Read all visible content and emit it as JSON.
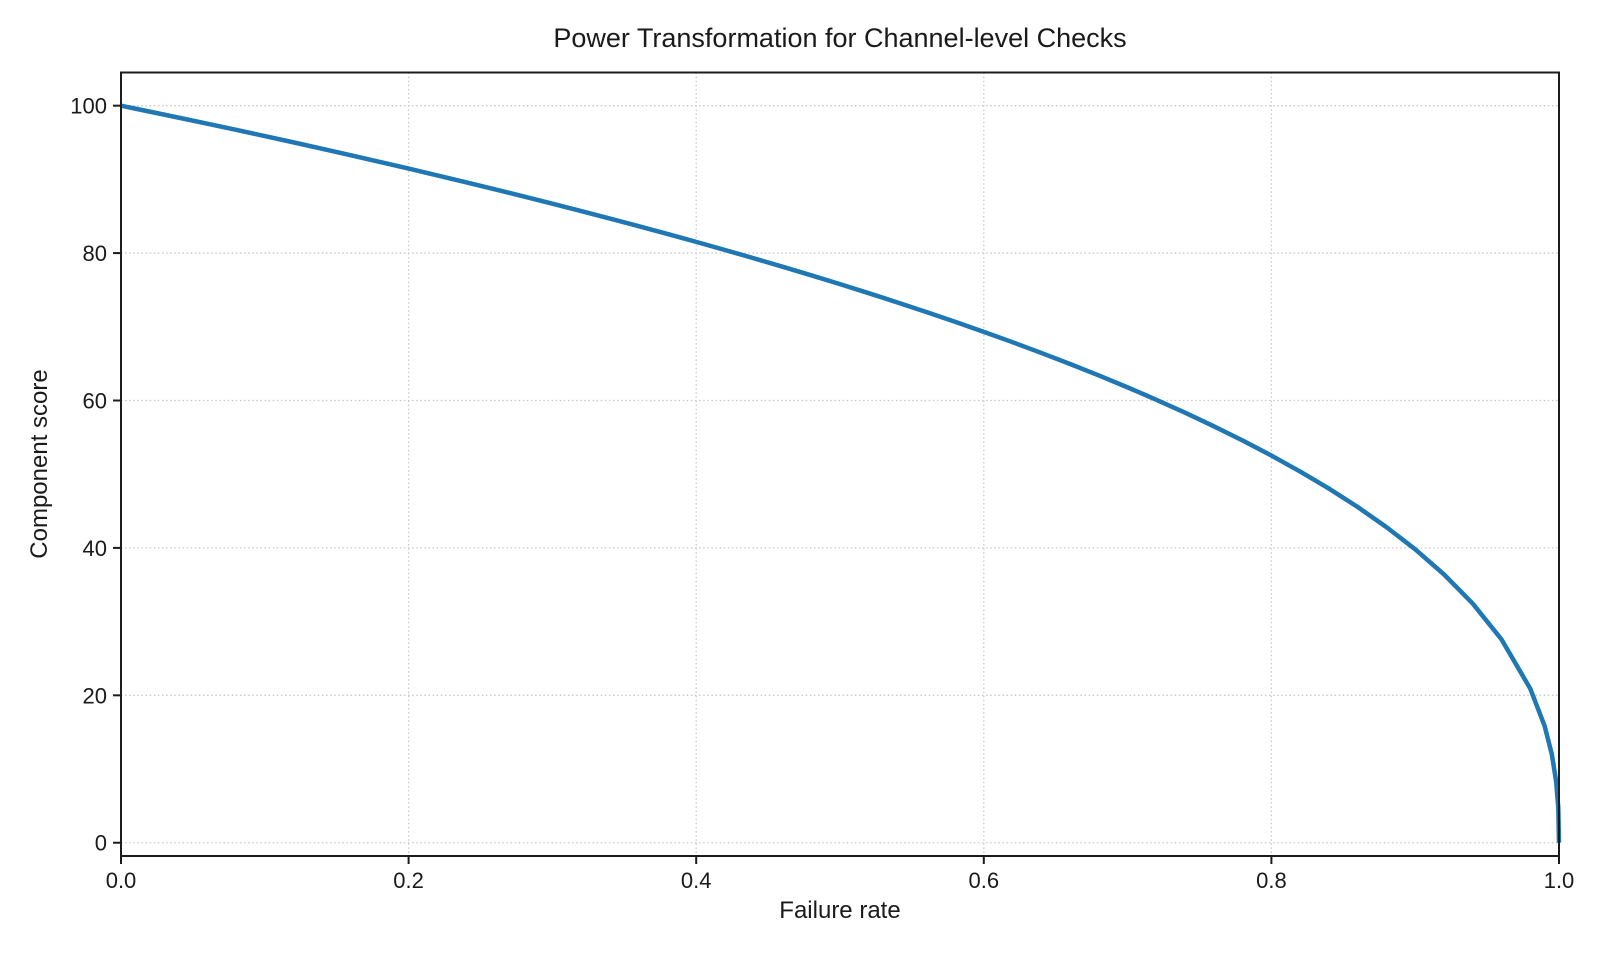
{
  "chart_data": {
    "type": "line",
    "title": "Power Transformation for Channel-level Checks",
    "xlabel": "Failure rate",
    "ylabel": "Component score",
    "xlim": [
      0,
      1
    ],
    "ylim": [
      -1.8,
      104.5
    ],
    "xticks": [
      0.0,
      0.2,
      0.4,
      0.6,
      0.8,
      1.0
    ],
    "xtick_labels": [
      "0.0",
      "0.2",
      "0.4",
      "0.6",
      "0.8",
      "1.0"
    ],
    "yticks": [
      0,
      20,
      40,
      60,
      80,
      100
    ],
    "ytick_labels": [
      "0",
      "20",
      "40",
      "60",
      "80",
      "100"
    ],
    "grid": true,
    "grid_line_style": "dotted",
    "grid_color": "#c9c9c9",
    "background": "#ffffff",
    "text_color": "#1a1a1a",
    "legend": "none",
    "series": [
      {
        "name": "component-score-curve",
        "color": "#1f77b4",
        "line_width": 4.5,
        "x": [
          0,
          0.02,
          0.04,
          0.06,
          0.08,
          0.1,
          0.12,
          0.14,
          0.16,
          0.18,
          0.2,
          0.22,
          0.24,
          0.26,
          0.28,
          0.3,
          0.32,
          0.34,
          0.36,
          0.38,
          0.4,
          0.42,
          0.44,
          0.46,
          0.48,
          0.5,
          0.52,
          0.54,
          0.56,
          0.58,
          0.6,
          0.62,
          0.64,
          0.66,
          0.68,
          0.7,
          0.72,
          0.74,
          0.76,
          0.78,
          0.8,
          0.82,
          0.84,
          0.86,
          0.88,
          0.9,
          0.92,
          0.94,
          0.96,
          0.98,
          0.99,
          0.995,
          0.998,
          0.9995,
          1.0
        ],
        "y": [
          100,
          99.19,
          98.38,
          97.56,
          96.72,
          95.87,
          95.02,
          94.15,
          93.26,
          92.37,
          91.46,
          90.54,
          89.6,
          88.65,
          87.69,
          86.7,
          85.7,
          84.69,
          83.65,
          82.6,
          81.52,
          80.42,
          79.3,
          78.15,
          76.98,
          75.79,
          74.56,
          73.3,
          72.01,
          70.68,
          69.31,
          67.91,
          66.45,
          64.95,
          63.4,
          61.78,
          60.1,
          58.34,
          56.5,
          54.57,
          52.53,
          50.36,
          48.05,
          45.55,
          42.82,
          39.81,
          36.41,
          32.45,
          27.59,
          20.91,
          15.85,
          12.01,
          8.33,
          4.78,
          0
        ]
      }
    ]
  }
}
